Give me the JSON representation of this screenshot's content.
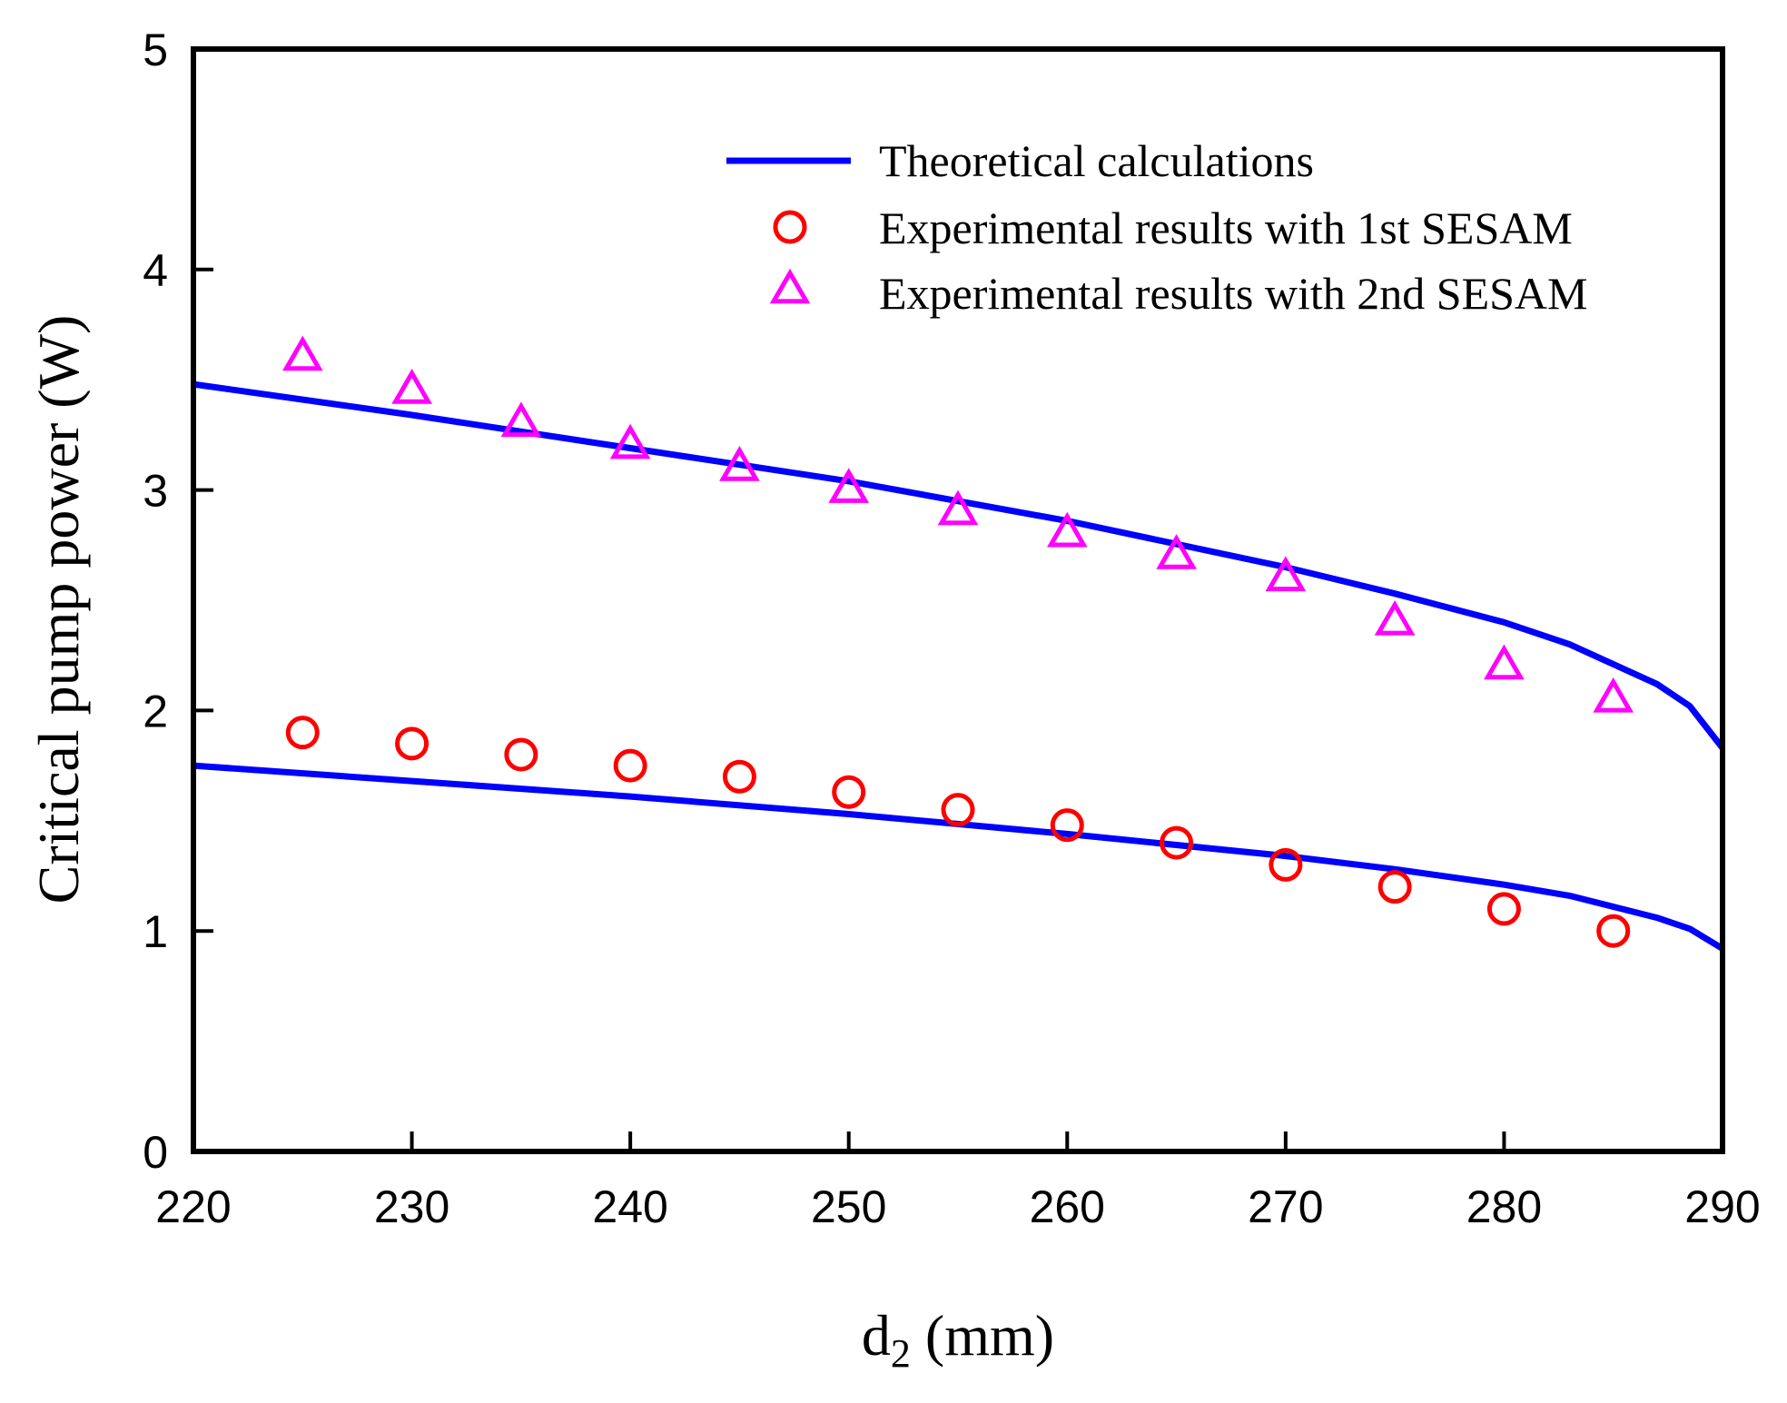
{
  "chart_data": {
    "type": "line",
    "title": "",
    "xlabel": {
      "main": "d",
      "sub": "2",
      "rest": " (mm)"
    },
    "ylabel": "Critical pump power (W)",
    "xlim": [
      220,
      290
    ],
    "ylim": [
      0,
      5
    ],
    "xticks": [
      220,
      230,
      240,
      250,
      260,
      270,
      280,
      290
    ],
    "yticks": [
      0,
      1,
      2,
      3,
      4,
      5
    ],
    "grid": false,
    "legend_position": "top-right",
    "colors": {
      "theory": "#0000ff",
      "exp1": "#ff0000",
      "exp2": "#ff00ff",
      "axis": "#000000"
    },
    "legend": [
      {
        "label": "Theoretical calculations",
        "marker": "line",
        "color": "#0000ff"
      },
      {
        "label": "Experimental results with 1st SESAM",
        "marker": "circle",
        "color": "#ff0000"
      },
      {
        "label": "Experimental results with 2nd SESAM",
        "marker": "triangle",
        "color": "#ff00ff"
      }
    ],
    "series": [
      {
        "name": "Theoretical calculations (upper)",
        "kind": "line",
        "color": "#0000ff",
        "x": [
          220,
          230,
          240,
          250,
          260,
          270,
          275,
          280,
          283,
          285,
          287,
          288.5,
          290
        ],
        "y": [
          3.48,
          3.34,
          3.19,
          3.04,
          2.86,
          2.65,
          2.53,
          2.4,
          2.3,
          2.21,
          2.12,
          2.02,
          1.83
        ]
      },
      {
        "name": "Theoretical calculations (lower)",
        "kind": "line",
        "color": "#0000ff",
        "x": [
          220,
          230,
          240,
          250,
          260,
          270,
          275,
          280,
          283,
          285,
          287,
          288.5,
          290
        ],
        "y": [
          1.75,
          1.68,
          1.61,
          1.53,
          1.44,
          1.34,
          1.28,
          1.21,
          1.16,
          1.11,
          1.06,
          1.01,
          0.92
        ]
      },
      {
        "name": "Experimental results with 1st SESAM",
        "kind": "circle",
        "color": "#ff0000",
        "x": [
          225,
          230,
          235,
          240,
          245,
          250,
          255,
          260,
          265,
          270,
          275,
          280,
          285
        ],
        "y": [
          1.9,
          1.85,
          1.8,
          1.75,
          1.7,
          1.63,
          1.55,
          1.48,
          1.4,
          1.3,
          1.2,
          1.1,
          1.0
        ]
      },
      {
        "name": "Experimental results with 2nd SESAM",
        "kind": "triangle",
        "color": "#ff00ff",
        "x": [
          225,
          230,
          235,
          240,
          245,
          250,
          255,
          260,
          265,
          270,
          275,
          280,
          285
        ],
        "y": [
          3.6,
          3.45,
          3.3,
          3.2,
          3.1,
          3.0,
          2.9,
          2.8,
          2.7,
          2.6,
          2.4,
          2.2,
          2.05
        ]
      }
    ]
  }
}
